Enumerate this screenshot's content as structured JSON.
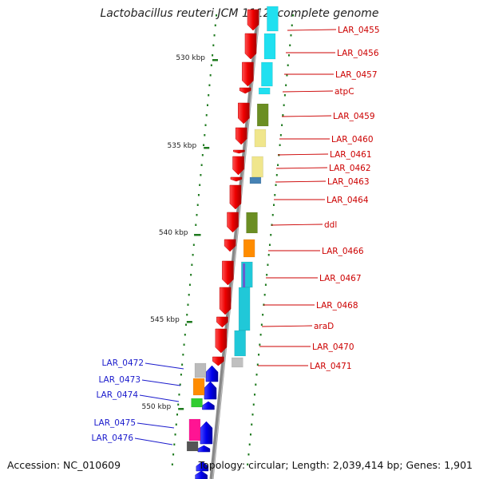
{
  "title": "Lactobacillus reuteri JCM 1112, complete genome",
  "footer": {
    "accession": "Accession: NC_010609",
    "summary": "Topology: circular; Length: 2,039,414 bp; Genes: 1,901"
  },
  "scale_labels": [
    "530 kbp",
    "535 kbp",
    "540 kbp",
    "545 kbp",
    "550 kbp"
  ],
  "right_genes": [
    "LAR_0455",
    "LAR_0456",
    "LAR_0457",
    "atpC",
    "LAR_0459",
    "LAR_0460",
    "LAR_0461",
    "LAR_0462",
    "LAR_0463",
    "LAR_0464",
    "ddl",
    "LAR_0466",
    "LAR_0467",
    "LAR_0468",
    "araD",
    "LAR_0470",
    "LAR_0471"
  ],
  "left_genes": [
    "LAR_0472",
    "LAR_0473",
    "LAR_0474",
    "LAR_0475",
    "LAR_0476"
  ],
  "colors": {
    "right_label": "#cc0000",
    "left_label": "#1a1acc",
    "gene_forward": "#ee0000",
    "gene_reverse": "#0000ee",
    "backbone": "#888888",
    "tick": "#1e7a1e"
  }
}
